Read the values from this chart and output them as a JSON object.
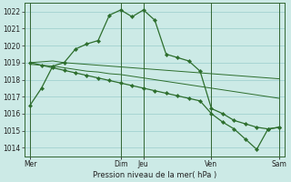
{
  "xlabel": "Pression niveau de la mer( hPa )",
  "ylim": [
    1013.5,
    1022.5
  ],
  "yticks": [
    1014,
    1015,
    1016,
    1017,
    1018,
    1019,
    1020,
    1021,
    1022
  ],
  "bg_color": "#cceae6",
  "grid_color": "#99cccc",
  "line_color": "#2d6e2d",
  "xtick_labels": [
    "Mer",
    "Dim",
    "Jeu",
    "Ven",
    "Sam"
  ],
  "xtick_positions": [
    0,
    8,
    10,
    16,
    22
  ],
  "vlines": [
    0,
    8,
    10,
    16,
    22
  ],
  "n_points": 23,
  "series1": [
    1016.5,
    1017.5,
    1018.8,
    1019.0,
    1019.8,
    1020.1,
    1020.3,
    1021.8,
    1022.1,
    1021.7,
    1022.1,
    1021.5,
    1019.5,
    1019.3,
    1019.1,
    1018.5,
    1016.3,
    1016.0,
    1015.6,
    1015.4,
    1015.2,
    1015.1,
    1015.2
  ],
  "series2": [
    1019.0,
    1019.05,
    1019.1,
    1019.0,
    1018.95,
    1018.9,
    1018.85,
    1018.8,
    1018.75,
    1018.7,
    1018.65,
    1018.6,
    1018.55,
    1018.5,
    1018.45,
    1018.4,
    1018.35,
    1018.3,
    1018.25,
    1018.2,
    1018.15,
    1018.1,
    1018.05
  ],
  "series3": [
    1018.9,
    1018.85,
    1018.8,
    1018.7,
    1018.6,
    1018.5,
    1018.45,
    1018.35,
    1018.3,
    1018.2,
    1018.1,
    1018.0,
    1017.9,
    1017.8,
    1017.7,
    1017.6,
    1017.5,
    1017.4,
    1017.3,
    1017.2,
    1017.1,
    1017.0,
    1016.9
  ],
  "series4": [
    1019.0,
    1018.85,
    1018.7,
    1018.55,
    1018.4,
    1018.25,
    1018.1,
    1017.95,
    1017.8,
    1017.65,
    1017.5,
    1017.35,
    1017.2,
    1017.05,
    1016.9,
    1016.75,
    1016.0,
    1015.5,
    1015.1,
    1014.5,
    1013.9,
    1015.1,
    1015.2
  ],
  "ytick_fontsize": 5.5,
  "xtick_fontsize": 5.5,
  "xlabel_fontsize": 6.0
}
